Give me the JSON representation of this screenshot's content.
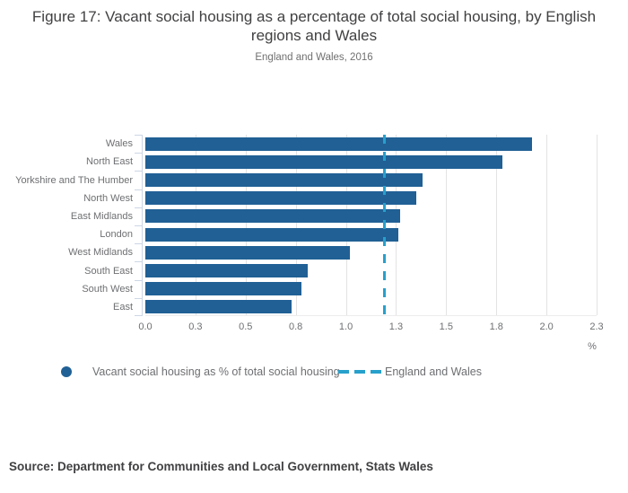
{
  "title": "Figure 17: Vacant social housing as a percentage of total social housing, by English regions and Wales",
  "subtitle": "England and Wales, 2016",
  "source": "Source: Department for Communities and Local Government, Stats Wales",
  "legend": {
    "series_label": "Vacant social housing as % of total social housing",
    "reference_label": "England and Wales"
  },
  "chart_data": {
    "type": "bar",
    "orientation": "horizontal",
    "title": "Figure 17: Vacant social housing as a percentage of total social housing, by English regions and Wales",
    "subtitle": "England and Wales, 2016",
    "categories": [
      "Wales",
      "North East",
      "Yorkshire and The Humber",
      "North West",
      "East Midlands",
      "London",
      "West Midlands",
      "South East",
      "South West",
      "East"
    ],
    "values": [
      1.93,
      1.78,
      1.38,
      1.35,
      1.27,
      1.26,
      1.02,
      0.81,
      0.78,
      0.73
    ],
    "series_name": "Vacant social housing as % of total social housing",
    "reference_line": {
      "label": "England and Wales",
      "value": 1.19
    },
    "xlim": [
      0,
      2.25
    ],
    "x_tick_values": [
      0,
      0.25,
      0.5,
      0.75,
      1.0,
      1.25,
      1.5,
      1.75,
      2.0,
      2.25
    ],
    "x_tick_labels": [
      "0.0",
      "0.3",
      "0.5",
      "0.8",
      "1.0",
      "1.3",
      "1.5",
      "1.8",
      "2.0",
      "2.3"
    ],
    "xlabel": "%",
    "grid": true,
    "legend_position": "bottom",
    "colors": {
      "bar": "#206095",
      "reference": "#27a0cc",
      "gridline": "#e3e3e3",
      "axis_line": "#ccd6e4",
      "title_text": "#414042",
      "muted_text": "#6e6f72"
    }
  }
}
